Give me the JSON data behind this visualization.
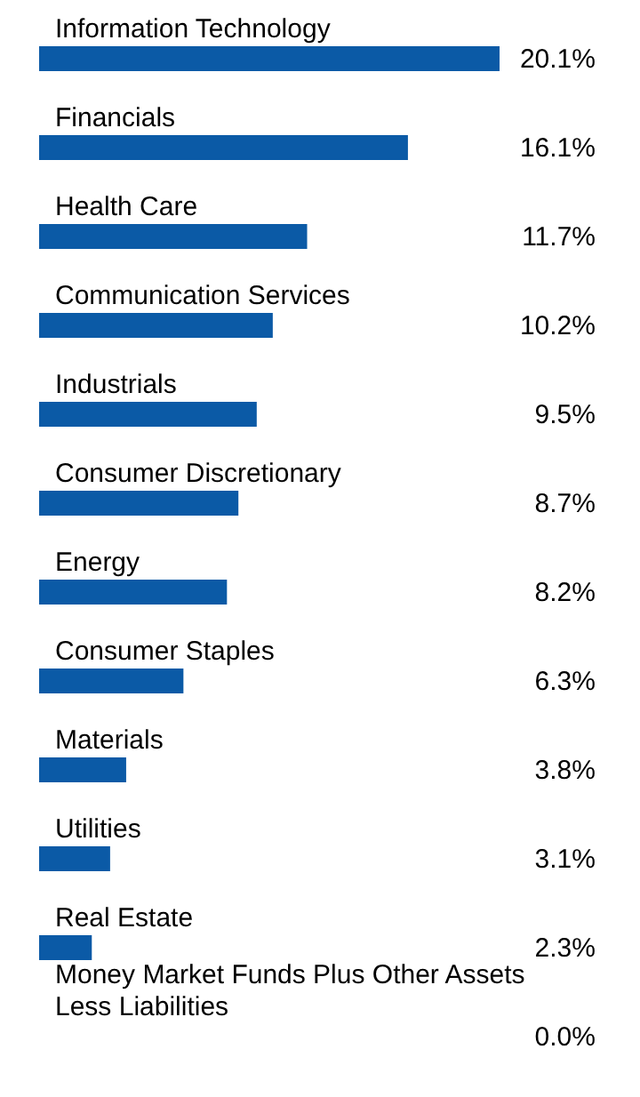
{
  "chart_data": {
    "type": "bar",
    "orientation": "horizontal",
    "categories": [
      "Information Technology",
      "Financials",
      "Health Care",
      "Communication Services",
      "Industrials",
      "Consumer Discretionary",
      "Energy",
      "Consumer Staples",
      "Materials",
      "Utilities",
      "Real Estate",
      "Money Market Funds Plus Other Assets Less Liabilities"
    ],
    "values": [
      20.1,
      16.1,
      11.7,
      10.2,
      9.5,
      8.7,
      8.2,
      6.3,
      3.8,
      3.1,
      2.3,
      0.0
    ],
    "value_labels": [
      "20.1%",
      "16.1%",
      "11.7%",
      "10.2%",
      "9.5%",
      "8.7%",
      "8.2%",
      "6.3%",
      "3.8%",
      "3.1%",
      "2.3%",
      "0.0%"
    ],
    "color": "#0b5aa6"
  }
}
